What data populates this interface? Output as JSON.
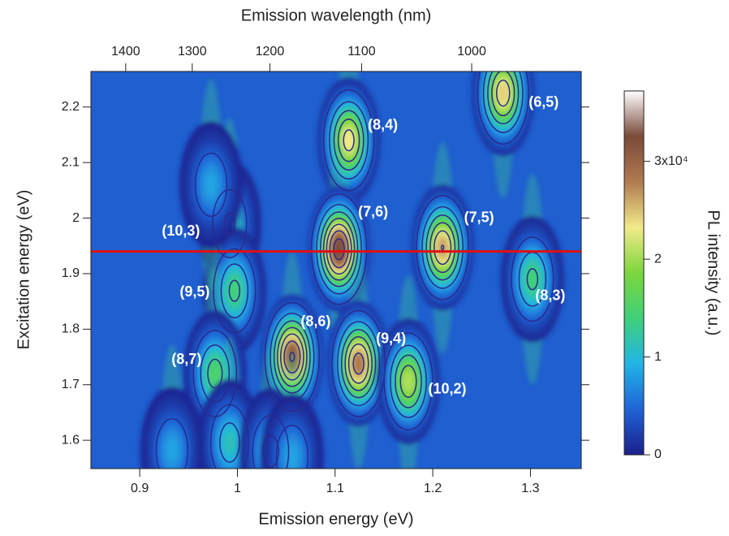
{
  "chart_data": {
    "type": "heatmap",
    "x_label": "Emission energy (eV)",
    "y_label": "Excitation energy (eV)",
    "x2_label": "Emission wavelength (nm)",
    "colorbar_label": "PL intensity (a.u.)",
    "xlim": [
      0.85,
      1.352
    ],
    "ylim": [
      1.549,
      2.264
    ],
    "xticks": [
      0.9,
      1.0,
      1.1,
      1.2,
      1.3
    ],
    "yticks": [
      1.6,
      1.7,
      1.8,
      1.9,
      2.0,
      2.1,
      2.2
    ],
    "x2ticks": [
      1400,
      1300,
      1200,
      1100,
      1000
    ],
    "clim": [
      0,
      37200
    ],
    "cticks": [
      0,
      {
        "value": 10000,
        "label": "1"
      },
      {
        "value": 20000,
        "label": "2"
      },
      {
        "value": 30000,
        "label": "3x10⁴"
      }
    ],
    "colormap": [
      "#1c1f8a",
      "#1f63d6",
      "#21b4e6",
      "#3fd07a",
      "#7cd63c",
      "#f2ea8a",
      "#b07a50",
      "#7a4a3a",
      "#ffffff"
    ],
    "contour_color": "#2b2a8c",
    "hline": {
      "y": 1.94,
      "color": "#e01010"
    },
    "peaks": [
      {
        "label": "(6,5)",
        "x": 1.272,
        "y": 2.225,
        "intensity": 26000
      },
      {
        "label": "(8,4)",
        "x": 1.114,
        "y": 2.14,
        "intensity": 25000
      },
      {
        "label": "(7,6)",
        "x": 1.104,
        "y": 1.944,
        "intensity": 35000
      },
      {
        "label": "(7,5)",
        "x": 1.21,
        "y": 1.947,
        "intensity": 28000
      },
      {
        "label": "(10,3)",
        "x": 0.992,
        "y": 1.99,
        "intensity": 10000
      },
      {
        "label": "(9,5)",
        "x": 0.997,
        "y": 1.869,
        "intensity": 15000
      },
      {
        "label": "(8,3)",
        "x": 1.302,
        "y": 1.89,
        "intensity": 15000
      },
      {
        "label": "(8,6)",
        "x": 1.056,
        "y": 1.75,
        "intensity": 33000
      },
      {
        "label": "(9,4)",
        "x": 1.124,
        "y": 1.738,
        "intensity": 30000
      },
      {
        "label": "(10,2)",
        "x": 1.175,
        "y": 1.706,
        "intensity": 22000
      },
      {
        "label": "(8,7)",
        "x": 0.977,
        "y": 1.72,
        "intensity": 16000
      },
      {
        "label": null,
        "x": 0.973,
        "y": 2.06,
        "intensity": 9000
      },
      {
        "label": null,
        "x": 0.992,
        "y": 1.596,
        "intensity": 12000
      },
      {
        "label": null,
        "x": 0.933,
        "y": 1.582,
        "intensity": 9000
      },
      {
        "label": null,
        "x": 1.034,
        "y": 1.58,
        "intensity": 11000
      },
      {
        "label": null,
        "x": 1.056,
        "y": 1.57,
        "intensity": 9000
      }
    ]
  }
}
